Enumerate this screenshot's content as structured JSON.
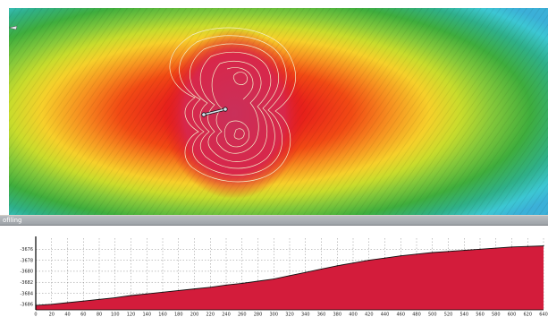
{
  "profile_panel": {
    "title": "ofiling"
  },
  "colors": {
    "elevation_ramp": [
      "#e21a1a",
      "#f24a14",
      "#f79020",
      "#f6d02a",
      "#c9dc2c",
      "#86c93a",
      "#3fae3d",
      "#2fb089",
      "#3cc7d3",
      "#3bb0d8"
    ],
    "contour": "#f3efc8",
    "profile_fill": "#d31c3b",
    "profile_line": "#111111",
    "transect": "#d8e7f0"
  },
  "chart_data": {
    "type": "area",
    "title": "",
    "xlabel": "",
    "ylabel": "",
    "xlim": [
      0,
      640
    ],
    "ylim": [
      -3687,
      -3674
    ],
    "x_ticks": [
      "0",
      "20",
      "40",
      "60",
      "80",
      "100",
      "120",
      "140",
      "160",
      "180",
      "200",
      "220",
      "240",
      "260",
      "280",
      "300",
      "320",
      "340",
      "360",
      "380",
      "400",
      "420",
      "440",
      "460",
      "480",
      "500",
      "520",
      "540",
      "560",
      "580",
      "600",
      "620",
      "640"
    ],
    "y_ticks": [
      "-3676",
      "-3678",
      "-3680",
      "-3682",
      "-3684",
      "-3686"
    ],
    "grid": true,
    "series": [
      {
        "x": [
          0,
          20,
          40,
          60,
          80,
          100,
          120,
          140,
          160,
          180,
          200,
          220,
          240,
          260,
          280,
          300,
          320,
          340,
          360,
          380,
          400,
          420,
          440,
          460,
          480,
          500,
          520,
          540,
          560,
          580,
          600,
          620,
          640
        ],
        "values": [
          -3686.2,
          -3686.0,
          -3685.7,
          -3685.4,
          -3685.1,
          -3684.8,
          -3684.4,
          -3684.1,
          -3683.8,
          -3683.5,
          -3683.2,
          -3682.9,
          -3682.5,
          -3682.2,
          -3681.8,
          -3681.4,
          -3680.8,
          -3680.2,
          -3679.6,
          -3679.0,
          -3678.5,
          -3678.0,
          -3677.6,
          -3677.2,
          -3676.9,
          -3676.6,
          -3676.4,
          -3676.2,
          -3676.0,
          -3675.8,
          -3675.6,
          -3675.5,
          -3675.4
        ]
      }
    ]
  }
}
